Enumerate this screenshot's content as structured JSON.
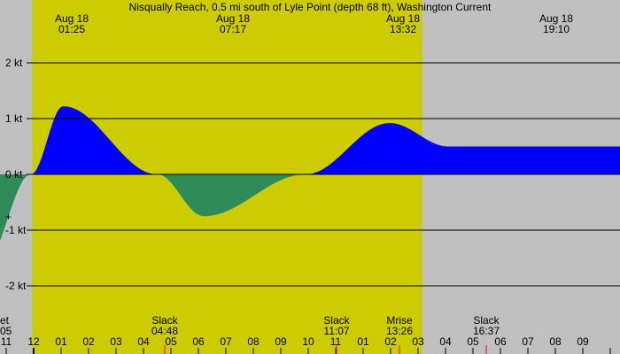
{
  "chart_data": {
    "type": "area",
    "title": "Nisqually Reach, 0.5 mi south of Lyle Point (depth 68 ft), Washington Current",
    "unit": "kt",
    "xlim_hours": [
      5,
      21.3
    ],
    "ylim": [
      -2.5,
      2.6
    ],
    "y_ticks": [
      {
        "value": 2,
        "label": "2 kt"
      },
      {
        "value": 1,
        "label": "1 kt"
      },
      {
        "value": 0,
        "label": "0 kt"
      },
      {
        "value": -1,
        "label": "-1 kt"
      },
      {
        "value": -2,
        "label": "-2 kt"
      }
    ],
    "daylight": {
      "start_hour": 6.15,
      "end_hour": 20.35
    },
    "colors": {
      "night": "#c0c0c0",
      "day": "#cccc00",
      "flood": "#0000ff",
      "ebb": "#2e8b57",
      "gridline": "#000000",
      "event_tick": "#ff0000"
    },
    "events": [
      {
        "date": "Aug 18",
        "time": "01:25",
        "hour": 6.3,
        "value": -1.6,
        "type": "max ebb"
      },
      {
        "date": "Aug 18",
        "time": "07:17",
        "hour": 7.28,
        "value": 1.22,
        "type": "max flood"
      },
      {
        "date": "Aug 18",
        "time": "13:32",
        "hour": 13.53,
        "value": -0.75,
        "type": "max ebb"
      },
      {
        "date": "Aug 18",
        "time": "19:10",
        "hour": 19.17,
        "value": 0.92,
        "type": "max flood"
      }
    ],
    "slacks": [
      {
        "label": "Slack",
        "time": "04:48",
        "hour": 9.1
      },
      {
        "label": "Slack",
        "time": "11:07",
        "hour": 15.4
      },
      {
        "label": "Mrise",
        "time": "13:26",
        "hour": 16.4
      },
      {
        "label": "Slack",
        "time": "16:37",
        "hour": 20.9
      }
    ],
    "extra_labels": [
      {
        "label": "et",
        "time": "05",
        "hour": 5.15
      }
    ],
    "x_ticks": [
      {
        "hour": 5.2,
        "label": "11"
      },
      {
        "hour": 6.2,
        "label": "12"
      },
      {
        "hour": 7.2,
        "label": "01"
      },
      {
        "hour": 8.2,
        "label": "02"
      },
      {
        "hour": 9.2,
        "label": "03"
      },
      {
        "hour": 10.2,
        "label": "04"
      },
      {
        "hour": 11.2,
        "label": "05"
      },
      {
        "hour": 12.2,
        "label": "06"
      },
      {
        "hour": 13.2,
        "label": "07"
      },
      {
        "hour": 14.2,
        "label": "08"
      },
      {
        "hour": 15.2,
        "label": "09"
      },
      {
        "hour": 16.2,
        "label": "10"
      },
      {
        "hour": 17.2,
        "label": "11"
      },
      {
        "hour": 18.2,
        "label": "01"
      },
      {
        "hour": 19.2,
        "label": "02"
      },
      {
        "hour": 20.2,
        "label": "03"
      },
      {
        "hour": 21.2,
        "label": "04"
      },
      {
        "hour": 22.2,
        "label": "05"
      },
      {
        "hour": 23.2,
        "label": "06"
      },
      {
        "hour": 24.2,
        "label": "07"
      },
      {
        "hour": 25.2,
        "label": "08"
      },
      {
        "hour": 26.2,
        "label": "09"
      }
    ]
  }
}
